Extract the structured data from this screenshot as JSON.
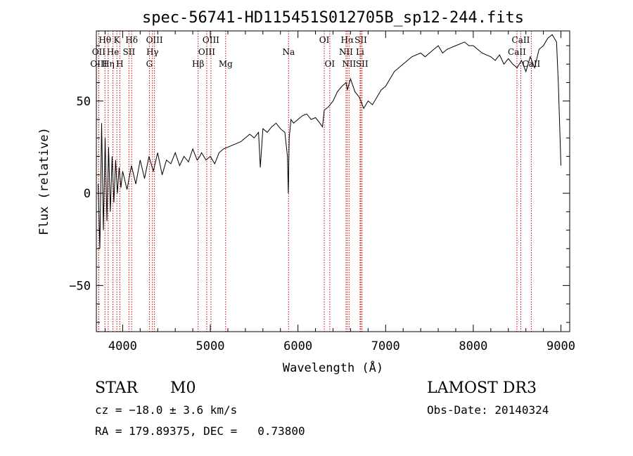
{
  "chart_data": {
    "type": "line",
    "title": "spec-56741-HD115451S012705B_sp12-244.fits",
    "xlabel": "Wavelength (Å)",
    "ylabel": "Flux (relative)",
    "xlim": [
      3700,
      9100
    ],
    "ylim": [
      -75,
      88
    ],
    "xticks": [
      {
        "value": 4000,
        "label": "4000"
      },
      {
        "value": 5000,
        "label": "5000"
      },
      {
        "value": 6000,
        "label": "6000"
      },
      {
        "value": 7000,
        "label": "7000"
      },
      {
        "value": 8000,
        "label": "8000"
      },
      {
        "value": 9000,
        "label": "9000"
      }
    ],
    "yticks": [
      {
        "value": -50,
        "label": "−50"
      },
      {
        "value": 0,
        "label": "0"
      },
      {
        "value": 50,
        "label": "50"
      }
    ],
    "series": [
      {
        "name": "spectrum",
        "color": "#000000",
        "x": [
          3720,
          3740,
          3760,
          3780,
          3800,
          3820,
          3840,
          3860,
          3880,
          3900,
          3920,
          3940,
          3960,
          3980,
          4000,
          4050,
          4100,
          4150,
          4200,
          4250,
          4300,
          4350,
          4400,
          4450,
          4500,
          4550,
          4600,
          4650,
          4700,
          4750,
          4800,
          4850,
          4880,
          4900,
          4950,
          5000,
          5050,
          5100,
          5150,
          5200,
          5250,
          5300,
          5350,
          5400,
          5450,
          5500,
          5550,
          5570,
          5600,
          5650,
          5700,
          5750,
          5800,
          5850,
          5880,
          5890,
          5900,
          5920,
          5950,
          6000,
          6050,
          6100,
          6150,
          6200,
          6250,
          6280,
          6300,
          6350,
          6400,
          6450,
          6500,
          6550,
          6563,
          6600,
          6650,
          6700,
          6750,
          6800,
          6850,
          6900,
          6950,
          7000,
          7050,
          7100,
          7150,
          7200,
          7250,
          7300,
          7350,
          7400,
          7450,
          7500,
          7550,
          7600,
          7650,
          7700,
          7750,
          7800,
          7850,
          7900,
          7950,
          8000,
          8050,
          8100,
          8150,
          8200,
          8250,
          8300,
          8350,
          8400,
          8450,
          8500,
          8550,
          8600,
          8650,
          8700,
          8750,
          8800,
          8850,
          8900,
          8950,
          8970,
          8990,
          9000
        ],
        "values": [
          5,
          -30,
          38,
          -20,
          30,
          -15,
          25,
          -10,
          20,
          -5,
          18,
          0,
          14,
          3,
          12,
          2,
          15,
          5,
          18,
          8,
          20,
          12,
          22,
          10,
          18,
          16,
          22,
          15,
          20,
          17,
          24,
          18,
          20,
          22,
          18,
          20,
          16,
          22,
          24,
          25,
          26,
          27,
          28,
          30,
          32,
          30,
          33,
          14,
          35,
          33,
          36,
          38,
          35,
          33,
          20,
          0,
          30,
          40,
          38,
          40,
          42,
          43,
          40,
          41,
          38,
          36,
          45,
          47,
          50,
          55,
          58,
          60,
          56,
          62,
          55,
          52,
          46,
          50,
          48,
          52,
          56,
          58,
          62,
          66,
          68,
          70,
          72,
          74,
          75,
          76,
          74,
          76,
          78,
          80,
          76,
          78,
          79,
          80,
          81,
          82,
          80,
          80,
          78,
          76,
          75,
          74,
          72,
          75,
          70,
          73,
          70,
          68,
          72,
          66,
          74,
          68,
          78,
          80,
          84,
          86,
          82,
          60,
          30,
          15
        ]
      }
    ],
    "lines": [
      {
        "name": "Hθ",
        "wavelength": 3798,
        "row": 0
      },
      {
        "name": "K",
        "wavelength": 3934,
        "row": 0
      },
      {
        "name": "Hδ",
        "wavelength": 4102,
        "row": 0
      },
      {
        "name": "OIII",
        "wavelength": 4363,
        "row": 0
      },
      {
        "name": "OIII",
        "wavelength": 5007,
        "row": 0
      },
      {
        "name": "OI",
        "wavelength": 6300,
        "row": 0
      },
      {
        "name": "Hα",
        "wavelength": 6563,
        "row": 0
      },
      {
        "name": "SII",
        "wavelength": 6717,
        "row": 0
      },
      {
        "name": "CaII",
        "wavelength": 8542,
        "row": 0
      },
      {
        "name": "OII",
        "wavelength": 3727,
        "row": 1
      },
      {
        "name": "He",
        "wavelength": 3889,
        "row": 1
      },
      {
        "name": "SII",
        "wavelength": 4072,
        "row": 1
      },
      {
        "name": "Hγ",
        "wavelength": 4340,
        "row": 1
      },
      {
        "name": "OIII",
        "wavelength": 4959,
        "row": 1
      },
      {
        "name": "Na",
        "wavelength": 5893,
        "row": 1
      },
      {
        "name": "NII",
        "wavelength": 6548,
        "row": 1
      },
      {
        "name": "Li",
        "wavelength": 6708,
        "row": 1
      },
      {
        "name": "CaII",
        "wavelength": 8498,
        "row": 1
      },
      {
        "name": "OIII",
        "wavelength": 3727,
        "row": 2
      },
      {
        "name": "Hη",
        "wavelength": 3835,
        "row": 2
      },
      {
        "name": "H",
        "wavelength": 3968,
        "row": 2
      },
      {
        "name": "G",
        "wavelength": 4305,
        "row": 2
      },
      {
        "name": "Hβ",
        "wavelength": 4861,
        "row": 2
      },
      {
        "name": "Mg",
        "wavelength": 5175,
        "row": 2
      },
      {
        "name": "OI",
        "wavelength": 6363,
        "row": 2
      },
      {
        "name": "NII",
        "wavelength": 6583,
        "row": 2
      },
      {
        "name": "SII",
        "wavelength": 6731,
        "row": 2
      },
      {
        "name": "CaII",
        "wavelength": 8662,
        "row": 2
      }
    ],
    "line_color": "#cc0000"
  },
  "info": {
    "class": "STAR",
    "subclass": "M0",
    "survey": "LAMOST DR3",
    "cz": "cz = −18.0 ± 3.6 km/s",
    "obs_date": "Obs-Date: 20140324",
    "coords": "RA = 179.89375, DEC =   0.73800"
  }
}
